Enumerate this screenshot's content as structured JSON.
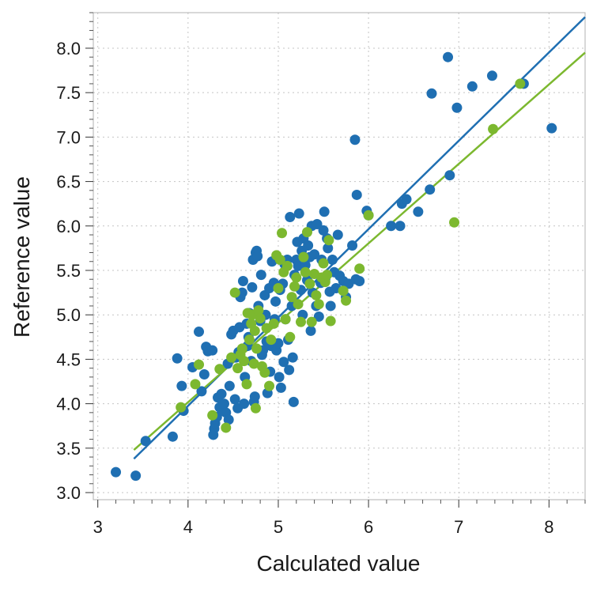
{
  "chart_data": {
    "type": "scatter",
    "xlabel": "Calculated value",
    "ylabel": "Reference value",
    "xlim": [
      2.95,
      8.4
    ],
    "ylim": [
      2.92,
      8.4
    ],
    "x_ticks": [
      "3",
      "4",
      "5",
      "6",
      "7",
      "8"
    ],
    "y_ticks": [
      "3.0",
      "3.5",
      "4.0",
      "4.5",
      "5.0",
      "5.5",
      "6.0",
      "6.5",
      "7.0",
      "7.5",
      "8.0"
    ],
    "grid": true,
    "series": [
      {
        "color": "#1f6fb2",
        "points": [
          [
            3.2,
            3.23
          ],
          [
            3.42,
            3.19
          ],
          [
            3.53,
            3.58
          ],
          [
            3.83,
            3.63
          ],
          [
            3.88,
            4.51
          ],
          [
            3.93,
            4.2
          ],
          [
            3.95,
            3.92
          ],
          [
            4.05,
            4.41
          ],
          [
            4.12,
            4.81
          ],
          [
            4.15,
            4.14
          ],
          [
            4.18,
            4.33
          ],
          [
            4.2,
            4.64
          ],
          [
            4.22,
            4.59
          ],
          [
            4.27,
            4.6
          ],
          [
            4.28,
            3.65
          ],
          [
            4.29,
            3.72
          ],
          [
            4.3,
            3.78
          ],
          [
            4.32,
            3.85
          ],
          [
            4.33,
            4.07
          ],
          [
            4.35,
            3.96
          ],
          [
            4.37,
            4.11
          ],
          [
            4.38,
            3.92
          ],
          [
            4.4,
            4.0
          ],
          [
            4.42,
            3.9
          ],
          [
            4.44,
            4.45
          ],
          [
            4.45,
            3.82
          ],
          [
            4.46,
            4.2
          ],
          [
            4.48,
            4.78
          ],
          [
            4.5,
            4.82
          ],
          [
            4.52,
            4.05
          ],
          [
            4.53,
            4.52
          ],
          [
            4.55,
            3.95
          ],
          [
            4.56,
            4.58
          ],
          [
            4.57,
            4.86
          ],
          [
            4.58,
            5.2
          ],
          [
            4.6,
            5.25
          ],
          [
            4.61,
            5.38
          ],
          [
            4.62,
            4.0
          ],
          [
            4.63,
            4.3
          ],
          [
            4.65,
            4.9
          ],
          [
            4.66,
            4.65
          ],
          [
            4.67,
            4.75
          ],
          [
            4.68,
            5.02
          ],
          [
            4.7,
            4.48
          ],
          [
            4.71,
            5.31
          ],
          [
            4.72,
            5.62
          ],
          [
            4.73,
            4.02
          ],
          [
            4.74,
            4.08
          ],
          [
            4.75,
            5.7
          ],
          [
            4.76,
            5.72
          ],
          [
            4.77,
            5.66
          ],
          [
            4.78,
            5.1
          ],
          [
            4.8,
            4.93
          ],
          [
            4.81,
            5.45
          ],
          [
            4.82,
            4.55
          ],
          [
            4.83,
            4.6
          ],
          [
            4.85,
            5.22
          ],
          [
            4.86,
            5.0
          ],
          [
            4.87,
            4.7
          ],
          [
            4.88,
            4.12
          ],
          [
            4.9,
            5.3
          ],
          [
            4.91,
            4.36
          ],
          [
            4.92,
            4.65
          ],
          [
            4.93,
            5.6
          ],
          [
            4.95,
            5.36
          ],
          [
            4.96,
            4.95
          ],
          [
            4.97,
            5.15
          ],
          [
            4.98,
            4.6
          ],
          [
            5.0,
            4.68
          ],
          [
            5.01,
            4.3
          ],
          [
            5.02,
            5.28
          ],
          [
            5.03,
            4.18
          ],
          [
            5.05,
            5.35
          ],
          [
            5.06,
            4.47
          ],
          [
            5.07,
            5.57
          ],
          [
            5.08,
            4.95
          ],
          [
            5.1,
            5.62
          ],
          [
            5.11,
            4.72
          ],
          [
            5.12,
            4.38
          ],
          [
            5.13,
            6.1
          ],
          [
            5.15,
            5.1
          ],
          [
            5.16,
            4.52
          ],
          [
            5.17,
            4.02
          ],
          [
            5.18,
            5.45
          ],
          [
            5.2,
            5.62
          ],
          [
            5.21,
            5.82
          ],
          [
            5.22,
            5.55
          ],
          [
            5.23,
            6.14
          ],
          [
            5.25,
            5.28
          ],
          [
            5.26,
            5.72
          ],
          [
            5.27,
            5.0
          ],
          [
            5.28,
            5.86
          ],
          [
            5.3,
            5.56
          ],
          [
            5.32,
            5.39
          ],
          [
            5.33,
            5.78
          ],
          [
            5.35,
            5.65
          ],
          [
            5.36,
            4.82
          ],
          [
            5.37,
            6.0
          ],
          [
            5.38,
            5.25
          ],
          [
            5.4,
            5.68
          ],
          [
            5.42,
            5.1
          ],
          [
            5.43,
            6.02
          ],
          [
            5.45,
            4.98
          ],
          [
            5.47,
            5.36
          ],
          [
            5.48,
            5.62
          ],
          [
            5.5,
            5.95
          ],
          [
            5.51,
            6.16
          ],
          [
            5.52,
            5.4
          ],
          [
            5.54,
            5.86
          ],
          [
            5.55,
            5.75
          ],
          [
            5.57,
            5.26
          ],
          [
            5.58,
            5.1
          ],
          [
            5.6,
            5.62
          ],
          [
            5.62,
            5.48
          ],
          [
            5.64,
            5.3
          ],
          [
            5.66,
            5.9
          ],
          [
            5.68,
            5.44
          ],
          [
            5.72,
            5.38
          ],
          [
            5.75,
            5.2
          ],
          [
            5.78,
            5.35
          ],
          [
            5.82,
            5.78
          ],
          [
            5.85,
            6.97
          ],
          [
            5.86,
            5.4
          ],
          [
            5.87,
            6.35
          ],
          [
            5.9,
            5.38
          ],
          [
            5.98,
            6.17
          ],
          [
            6.0,
            6.12
          ],
          [
            6.25,
            6.0
          ],
          [
            6.35,
            6.0
          ],
          [
            6.37,
            6.25
          ],
          [
            6.42,
            6.3
          ],
          [
            6.55,
            6.16
          ],
          [
            6.68,
            6.41
          ],
          [
            6.7,
            7.49
          ],
          [
            6.88,
            7.9
          ],
          [
            6.9,
            6.57
          ],
          [
            6.98,
            7.33
          ],
          [
            7.15,
            7.57
          ],
          [
            7.37,
            7.69
          ],
          [
            7.72,
            7.6
          ],
          [
            8.03,
            7.1
          ]
        ]
      },
      {
        "color": "#7cb82f",
        "points": [
          [
            3.92,
            3.96
          ],
          [
            4.08,
            4.22
          ],
          [
            4.12,
            4.44
          ],
          [
            4.27,
            3.87
          ],
          [
            4.35,
            4.39
          ],
          [
            4.42,
            3.73
          ],
          [
            4.48,
            4.52
          ],
          [
            4.52,
            5.25
          ],
          [
            4.55,
            4.4
          ],
          [
            4.58,
            4.55
          ],
          [
            4.6,
            4.62
          ],
          [
            4.62,
            4.48
          ],
          [
            4.65,
            4.22
          ],
          [
            4.66,
            5.02
          ],
          [
            4.68,
            4.72
          ],
          [
            4.7,
            4.9
          ],
          [
            4.71,
            5.0
          ],
          [
            4.73,
            4.45
          ],
          [
            4.74,
            4.82
          ],
          [
            4.75,
            3.95
          ],
          [
            4.76,
            4.62
          ],
          [
            4.78,
            5.05
          ],
          [
            4.8,
            4.96
          ],
          [
            4.82,
            4.42
          ],
          [
            4.85,
            4.35
          ],
          [
            4.87,
            4.85
          ],
          [
            4.9,
            4.2
          ],
          [
            4.92,
            4.72
          ],
          [
            4.95,
            4.9
          ],
          [
            4.98,
            5.67
          ],
          [
            5.0,
            5.3
          ],
          [
            5.02,
            5.62
          ],
          [
            5.04,
            5.92
          ],
          [
            5.06,
            5.48
          ],
          [
            5.08,
            4.95
          ],
          [
            5.1,
            5.55
          ],
          [
            5.13,
            4.75
          ],
          [
            5.15,
            5.2
          ],
          [
            5.18,
            5.32
          ],
          [
            5.2,
            5.42
          ],
          [
            5.22,
            5.12
          ],
          [
            5.25,
            4.92
          ],
          [
            5.28,
            5.65
          ],
          [
            5.3,
            5.48
          ],
          [
            5.32,
            5.93
          ],
          [
            5.35,
            5.35
          ],
          [
            5.37,
            4.92
          ],
          [
            5.4,
            5.46
          ],
          [
            5.42,
            5.22
          ],
          [
            5.45,
            5.12
          ],
          [
            5.48,
            5.42
          ],
          [
            5.5,
            5.58
          ],
          [
            5.52,
            5.37
          ],
          [
            5.54,
            5.45
          ],
          [
            5.56,
            5.84
          ],
          [
            5.58,
            4.93
          ],
          [
            5.72,
            5.27
          ],
          [
            5.75,
            5.16
          ],
          [
            5.9,
            5.52
          ],
          [
            6.0,
            6.12
          ],
          [
            6.95,
            6.04
          ],
          [
            7.38,
            7.09
          ],
          [
            7.68,
            7.6
          ]
        ]
      }
    ],
    "fit_lines": [
      {
        "color": "#1f6fb2",
        "x": [
          3.4,
          8.4
        ],
        "y": [
          3.38,
          8.35
        ]
      },
      {
        "color": "#7cb82f",
        "x": [
          3.4,
          8.4
        ],
        "y": [
          3.48,
          7.95
        ]
      }
    ]
  }
}
